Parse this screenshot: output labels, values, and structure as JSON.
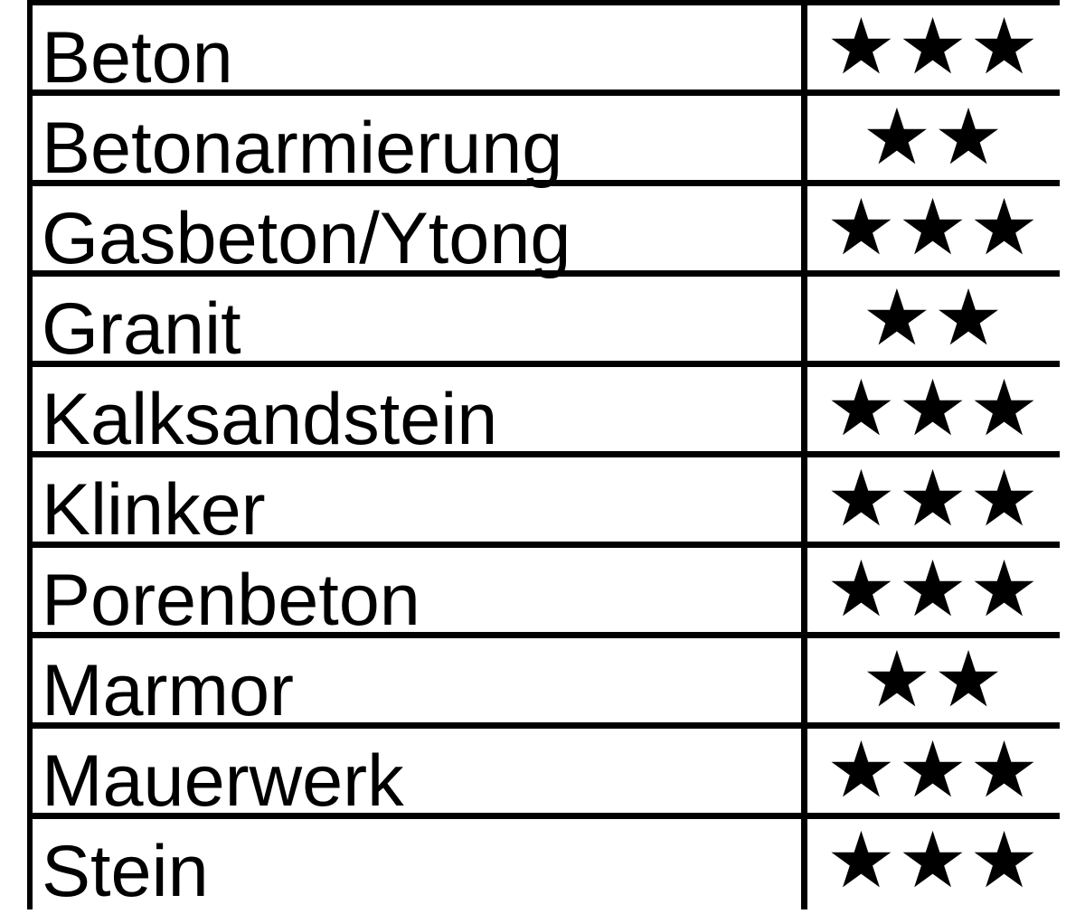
{
  "table": {
    "description": "material-suitability-rating-table",
    "max_rating": 3,
    "columns": [
      "material",
      "rating"
    ],
    "rows": [
      {
        "material": "Beton",
        "rating": 3,
        "stars": "★★★"
      },
      {
        "material": "Betonarmierung",
        "rating": 2,
        "stars": "★★"
      },
      {
        "material": "Gasbeton/Ytong",
        "rating": 3,
        "stars": "★★★"
      },
      {
        "material": "Granit",
        "rating": 2,
        "stars": "★★"
      },
      {
        "material": "Kalksandstein",
        "rating": 3,
        "stars": "★★★"
      },
      {
        "material": "Klinker",
        "rating": 3,
        "stars": "★★★"
      },
      {
        "material": "Porenbeton",
        "rating": 3,
        "stars": "★★★"
      },
      {
        "material": "Marmor",
        "rating": 2,
        "stars": "★★"
      },
      {
        "material": "Mauerwerk",
        "rating": 3,
        "stars": "★★★"
      },
      {
        "material": "Stein",
        "rating": 3,
        "stars": "★★★"
      }
    ]
  },
  "colors": {
    "border": "#000000",
    "text": "#000000",
    "star": "#000000",
    "background": "#ffffff"
  }
}
